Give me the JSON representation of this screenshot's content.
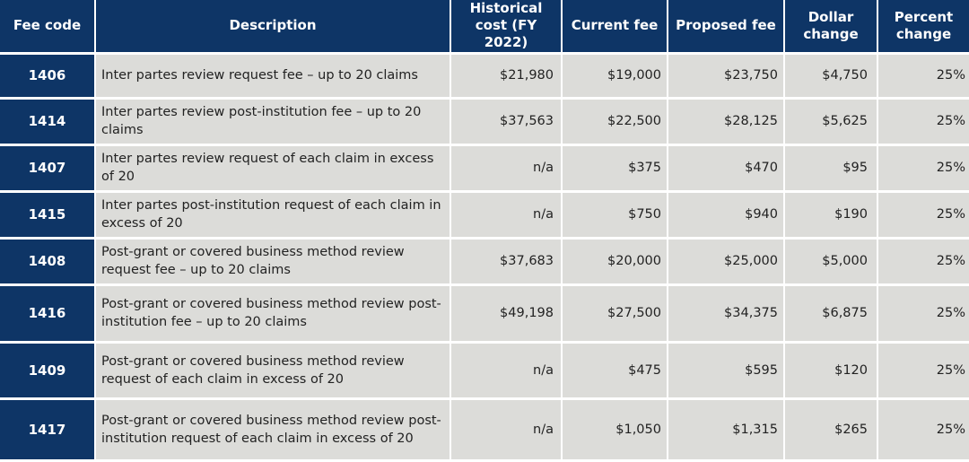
{
  "table": {
    "headers": [
      "Fee code",
      "Description",
      "Historical cost (FY 2022)",
      "Current fee",
      "Proposed fee",
      "Dollar change",
      "Percent change"
    ],
    "rows": [
      {
        "code": "1406",
        "description": "Inter partes review request fee – up to 20 claims",
        "historical": "$21,980",
        "current": "$19,000",
        "proposed": "$23,750",
        "dollar_change": "$4,750",
        "percent_change": "25%"
      },
      {
        "code": "1414",
        "description": "Inter partes review post-institution fee – up to 20 claims",
        "historical": "$37,563",
        "current": "$22,500",
        "proposed": "$28,125",
        "dollar_change": "$5,625",
        "percent_change": "25%"
      },
      {
        "code": "1407",
        "description": "Inter partes review request of each claim in excess of 20",
        "historical": "n/a",
        "current": "$375",
        "proposed": "$470",
        "dollar_change": "$95",
        "percent_change": "25%"
      },
      {
        "code": "1415",
        "description": "Inter partes post-institution request of each claim in excess of 20",
        "historical": "n/a",
        "current": "$750",
        "proposed": "$940",
        "dollar_change": "$190",
        "percent_change": "25%"
      },
      {
        "code": "1408",
        "description": "Post-grant or covered business method review request fee – up to 20 claims",
        "historical": "$37,683",
        "current": "$20,000",
        "proposed": "$25,000",
        "dollar_change": "$5,000",
        "percent_change": "25%"
      },
      {
        "code": "1416",
        "description": "Post-grant or covered business method review post-institution fee – up to 20 claims",
        "historical": "$49,198",
        "current": "$27,500",
        "proposed": "$34,375",
        "dollar_change": "$6,875",
        "percent_change": "25%"
      },
      {
        "code": "1409",
        "description": "Post-grant or covered business method review request of each claim in excess of 20",
        "historical": "n/a",
        "current": "$475",
        "proposed": "$595",
        "dollar_change": "$120",
        "percent_change": "25%"
      },
      {
        "code": "1417",
        "description": "Post-grant or covered business method review post-institution request of each claim in excess of 20",
        "historical": "n/a",
        "current": "$1,050",
        "proposed": "$1,315",
        "dollar_change": "$265",
        "percent_change": "25%"
      }
    ]
  },
  "colors": {
    "header_bg": "#0e3566",
    "cell_bg": "#dcdcd9",
    "separator": "#ffffff"
  }
}
